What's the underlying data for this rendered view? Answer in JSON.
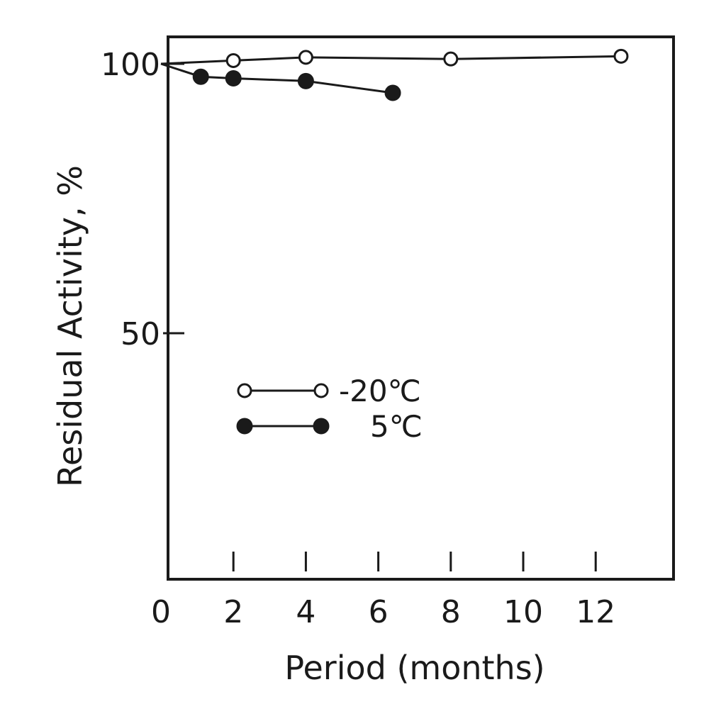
{
  "chart_data": {
    "type": "line",
    "xlabel": "Period (months)",
    "ylabel": "Residual Activity, %",
    "xlim": [
      0,
      14
    ],
    "ylim": [
      0,
      104
    ],
    "xticks": [
      0,
      2,
      4,
      6,
      8,
      10,
      12
    ],
    "yticks": [
      50,
      100
    ],
    "grid": false,
    "legend_position": "lower-left",
    "series": [
      {
        "name": "-20℃",
        "marker": "open-circle",
        "color": "#1a1a1a",
        "x": [
          0,
          2,
          4,
          8,
          12.7
        ],
        "y": [
          100,
          100.6,
          101.2,
          100.9,
          101.4
        ]
      },
      {
        "name": "5℃",
        "marker": "filled-circle",
        "color": "#1a1a1a",
        "x": [
          0,
          1.1,
          2,
          4,
          6.4
        ],
        "y": [
          100,
          97.6,
          97.3,
          96.8,
          94.6
        ]
      }
    ]
  }
}
